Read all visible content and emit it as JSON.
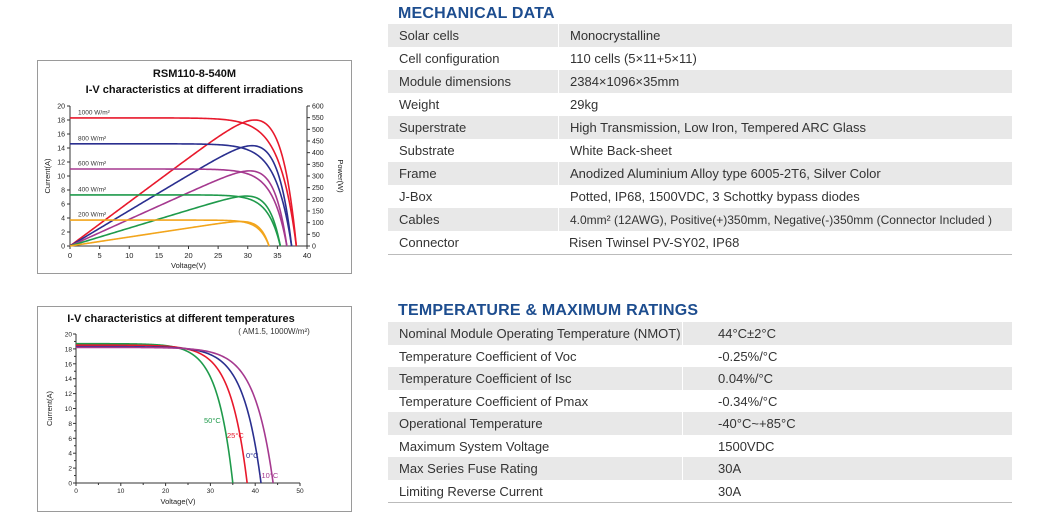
{
  "chart_data": [
    {
      "type": "line",
      "model": "RSM110-8-540M",
      "title": "I-V characteristics at different irradiations",
      "xlabel": "Voltage(V)",
      "ylabel": "Current(A)",
      "y2label": "Power(W)",
      "xlim": [
        0,
        40
      ],
      "ylim": [
        0,
        20
      ],
      "y2lim": [
        0,
        600
      ],
      "x_ticks": [
        "0",
        "5",
        "10",
        "15",
        "20",
        "25",
        "30",
        "35",
        "40"
      ],
      "y_ticks": [
        "0",
        "2",
        "4",
        "6",
        "8",
        "10",
        "12",
        "14",
        "16",
        "18",
        "20"
      ],
      "y2_ticks": [
        "0",
        "50",
        "100",
        "150",
        "200",
        "250",
        "300",
        "350",
        "400",
        "450",
        "500",
        "550",
        "600"
      ],
      "series": [
        {
          "name": "1000 W/m²",
          "color": "#e8192c",
          "isc": 18.3,
          "voc": 38.2,
          "vmp": 31.2,
          "pmax": 540
        },
        {
          "name": "800 W/m²",
          "color": "#2a2f8f",
          "isc": 14.6,
          "voc": 37.4,
          "vmp": 30.8,
          "pmax": 430
        },
        {
          "name": "600 W/m²",
          "color": "#a5398f",
          "isc": 11.0,
          "voc": 36.6,
          "vmp": 30.4,
          "pmax": 322
        },
        {
          "name": "400 W/m²",
          "color": "#1f9a4b",
          "isc": 7.3,
          "voc": 35.5,
          "vmp": 29.8,
          "pmax": 214
        },
        {
          "name": "200 W/m²",
          "color": "#f2a51c",
          "isc": 3.7,
          "voc": 33.6,
          "vmp": 28.8,
          "pmax": 105
        }
      ]
    },
    {
      "type": "line",
      "title": "I-V characteristics at different temperatures",
      "subtitle": "( AM1.5, 1000W/m²)",
      "xlabel": "Voltage(V)",
      "ylabel": "Current(A)",
      "xlim": [
        0,
        50
      ],
      "ylim": [
        0,
        20
      ],
      "x_ticks": [
        "0",
        "10",
        "20",
        "30",
        "40",
        "50"
      ],
      "y_ticks": [
        "0",
        "2",
        "4",
        "6",
        "8",
        "10",
        "12",
        "14",
        "16",
        "18",
        "20"
      ],
      "series": [
        {
          "name": "50°C",
          "color": "#1f9a4b",
          "isc": 18.7,
          "voc": 35.0
        },
        {
          "name": "25°C",
          "color": "#e8192c",
          "isc": 18.5,
          "voc": 38.2
        },
        {
          "name": "0°C",
          "color": "#2a2f8f",
          "isc": 18.3,
          "voc": 41.3
        },
        {
          "name": "-10°C",
          "color": "#a5398f",
          "isc": 18.2,
          "voc": 44.0
        }
      ]
    }
  ],
  "mechanical": {
    "title": "MECHANICAL DATA",
    "rows": [
      {
        "k": "Solar cells",
        "v": "Monocrystalline"
      },
      {
        "k": "Cell configuration",
        "v": "110 cells (5×11+5×11)"
      },
      {
        "k": "Module dimensions",
        "v": "2384×1096×35mm"
      },
      {
        "k": "Weight",
        "v": "29kg"
      },
      {
        "k": "Superstrate",
        "v": "High Transmission, Low Iron, Tempered ARC Glass"
      },
      {
        "k": "Substrate",
        "v": "White Back-sheet"
      },
      {
        "k": "Frame",
        "v": "Anodized Aluminium Alloy type 6005-2T6, Silver Color"
      },
      {
        "k": "J-Box",
        "v": "Potted, IP68, 1500VDC, 3 Schottky bypass diodes"
      },
      {
        "k": "Cables",
        "v": "4.0mm² (12AWG), Positive(+)350mm, Negative(-)350mm (Connector Included )"
      },
      {
        "k": "Connector",
        "v": "Risen Twinsel PV-SY02, IP68"
      }
    ]
  },
  "temperature": {
    "title": "TEMPERATURE & MAXIMUM RATINGS",
    "rows": [
      {
        "k": "Nominal Module Operating Temperature (NMOT)",
        "v": "44°C±2°C"
      },
      {
        "k": "Temperature Coefficient of Voc",
        "v": "-0.25%/°C"
      },
      {
        "k": "Temperature Coefficient of Isc",
        "v": "0.04%/°C"
      },
      {
        "k": "Temperature Coefficient of Pmax",
        "v": "-0.34%/°C"
      },
      {
        "k": "Operational Temperature",
        "v": "-40°C~+85°C"
      },
      {
        "k": "Maximum System Voltage",
        "v": "1500VDC"
      },
      {
        "k": "Max Series Fuse Rating",
        "v": "30A"
      },
      {
        "k": "Limiting Reverse Current",
        "v": "30A"
      }
    ]
  }
}
